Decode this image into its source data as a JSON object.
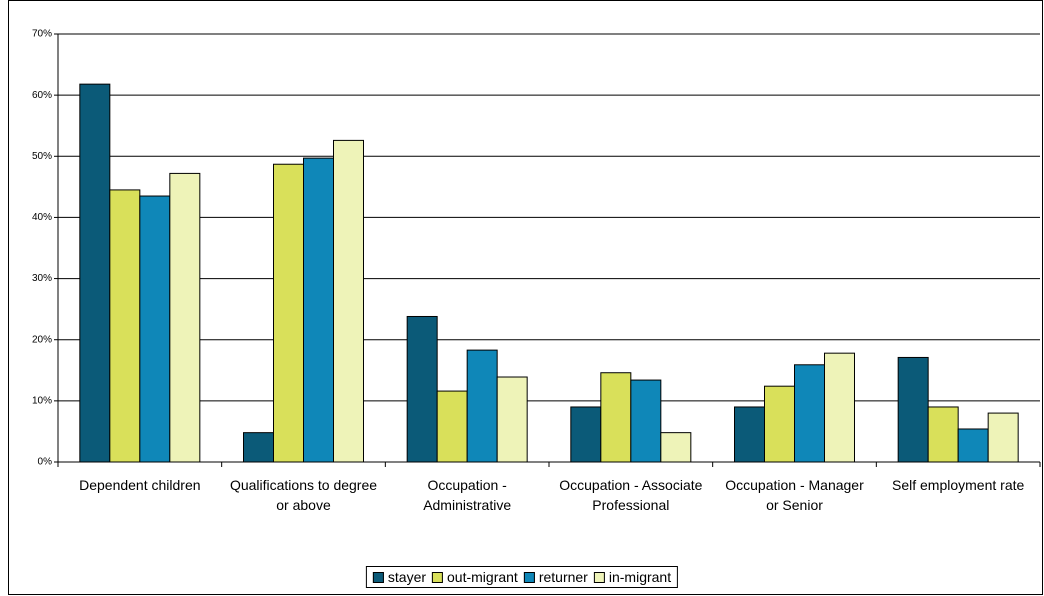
{
  "chart_data": {
    "type": "bar",
    "categories": [
      "Dependent children",
      "Qualifications to degree or above",
      "Occupation - Administrative",
      "Occupation - Associate Professional",
      "Occupation - Manager or Senior",
      "Self employment rate"
    ],
    "series": [
      {
        "name": "stayer",
        "color": "#0b5a78",
        "values": [
          61.8,
          4.8,
          23.8,
          9.0,
          9.0,
          17.1
        ]
      },
      {
        "name": "out-migrant",
        "color": "#d9e05a",
        "values": [
          44.5,
          48.7,
          11.6,
          14.6,
          12.4,
          9.0
        ]
      },
      {
        "name": "returner",
        "color": "#0f87b8",
        "values": [
          43.5,
          49.7,
          18.3,
          13.4,
          15.9,
          5.4
        ]
      },
      {
        "name": "in-migrant",
        "color": "#eef3b8",
        "values": [
          47.2,
          52.6,
          13.9,
          4.8,
          17.8,
          8.0
        ]
      }
    ],
    "ylim": [
      0,
      70
    ],
    "yticks": [
      {
        "value": 0,
        "label": "0%"
      },
      {
        "value": 10,
        "label": "10%"
      },
      {
        "value": 20,
        "label": "20%"
      },
      {
        "value": 30,
        "label": "30%"
      },
      {
        "value": 40,
        "label": "40%"
      },
      {
        "value": 50,
        "label": "50%"
      },
      {
        "value": 60,
        "label": "60%"
      },
      {
        "value": 70,
        "label": "70%"
      }
    ],
    "grid": true,
    "legend": "bottom"
  }
}
